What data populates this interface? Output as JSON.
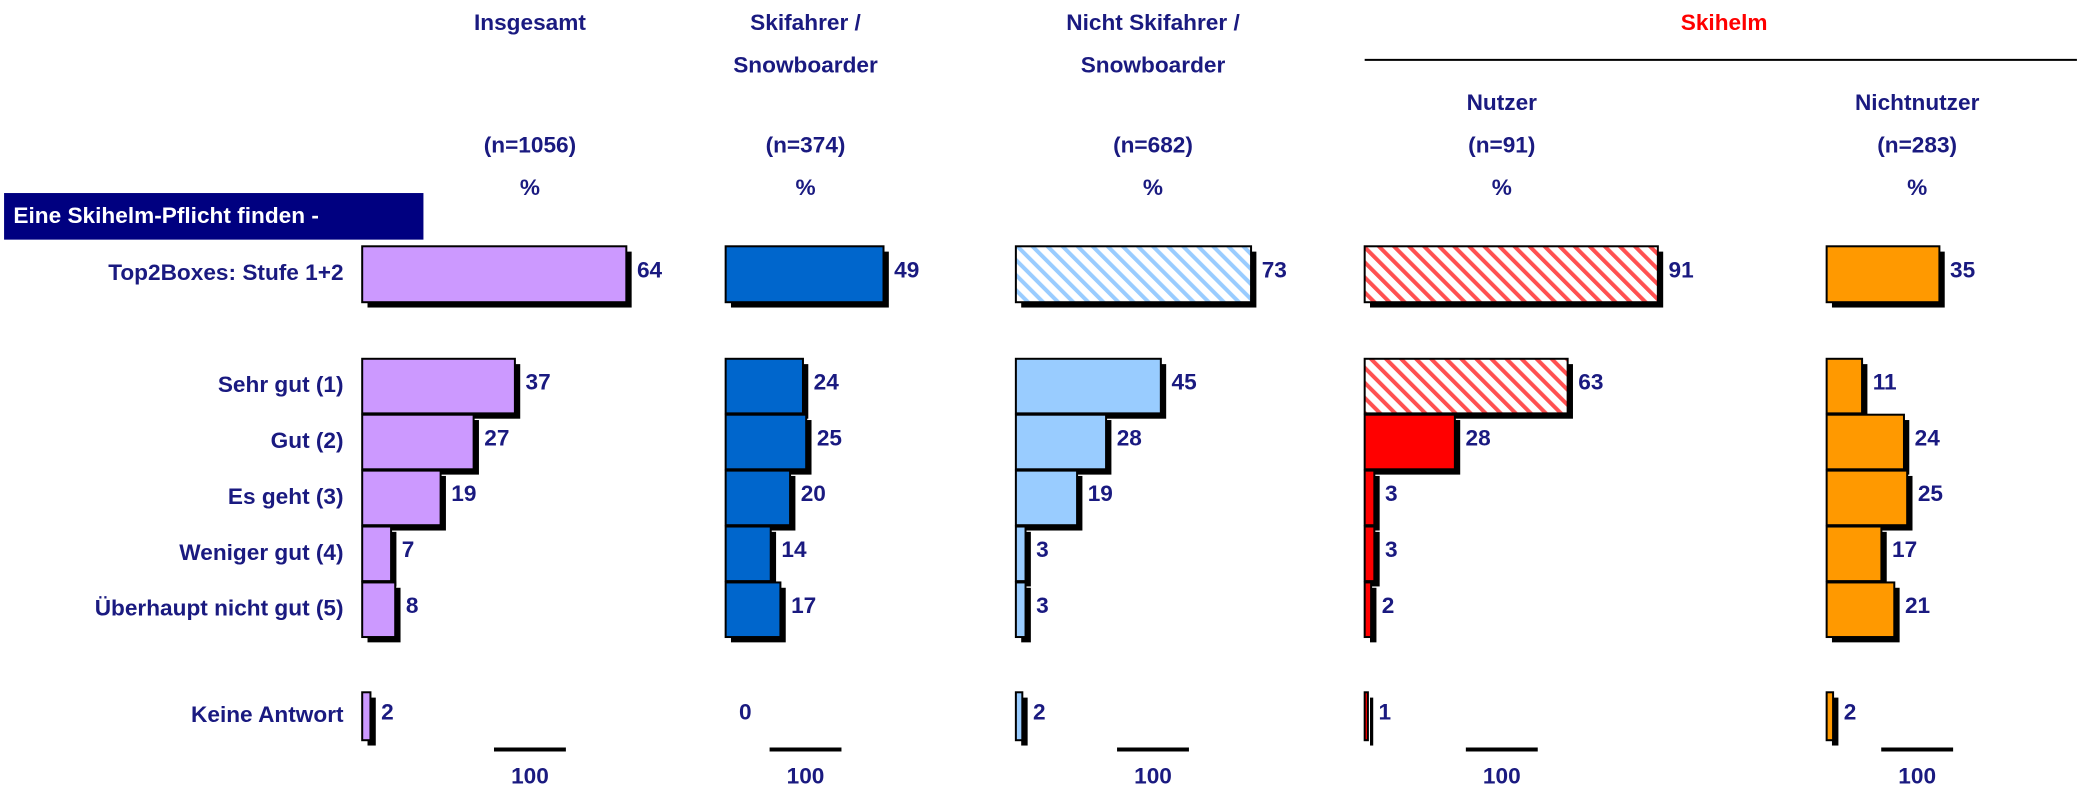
{
  "header_label": "Eine Skihelm-Pflicht finden -",
  "group_label": "Skihelm",
  "categories": [
    "Top2Boxes: Stufe 1+2",
    "Sehr gut (1)",
    "Gut (2)",
    "Es geht (3)",
    "Weniger gut (4)",
    "Überhaupt nicht gut (5)",
    "Keine Antwort"
  ],
  "chart_data": [
    {
      "type": "bar",
      "orientation": "horizontal",
      "title": [
        "Insgesamt"
      ],
      "sample": "(n=1056)",
      "unit": "%",
      "in_group": false,
      "values": [
        64,
        37,
        27,
        19,
        7,
        8,
        2
      ],
      "xlim": [
        0,
        100
      ],
      "scale": 100,
      "color": "#cc99ff",
      "patterns": [
        false,
        false,
        false,
        false,
        false,
        false,
        false
      ]
    },
    {
      "type": "bar",
      "orientation": "horizontal",
      "title": [
        "Skifahrer /",
        "Snowboarder"
      ],
      "sample": "(n=374)",
      "unit": "%",
      "in_group": false,
      "values": [
        49,
        24,
        25,
        20,
        14,
        17,
        0
      ],
      "xlim": [
        0,
        100
      ],
      "scale": 100,
      "color": "#0066cc",
      "patterns": [
        false,
        false,
        false,
        false,
        false,
        false,
        false
      ]
    },
    {
      "type": "bar",
      "orientation": "horizontal",
      "title": [
        "Nicht Skifahrer /",
        "Snowboarder"
      ],
      "sample": "(n=682)",
      "unit": "%",
      "in_group": false,
      "values": [
        73,
        45,
        28,
        19,
        3,
        3,
        2
      ],
      "xlim": [
        0,
        100
      ],
      "scale": 100,
      "color": "#99ccff",
      "patterns": [
        true,
        false,
        false,
        false,
        false,
        false,
        false
      ]
    },
    {
      "type": "bar",
      "orientation": "horizontal",
      "title": [
        "Nutzer"
      ],
      "sample": "(n=91)",
      "unit": "%",
      "in_group": true,
      "values": [
        91,
        63,
        28,
        3,
        3,
        2,
        1
      ],
      "xlim": [
        0,
        100
      ],
      "scale": 100,
      "color": "#ff0000",
      "patterns": [
        true,
        true,
        false,
        false,
        false,
        false,
        false
      ]
    },
    {
      "type": "bar",
      "orientation": "horizontal",
      "title": [
        "Nichtnutzer"
      ],
      "sample": "(n=283)",
      "unit": "%",
      "in_group": true,
      "values": [
        35,
        11,
        24,
        25,
        17,
        21,
        2
      ],
      "xlim": [
        0,
        100
      ],
      "scale": 100,
      "color": "#ff9900",
      "patterns": [
        false,
        false,
        false,
        false,
        false,
        false,
        false
      ]
    }
  ]
}
